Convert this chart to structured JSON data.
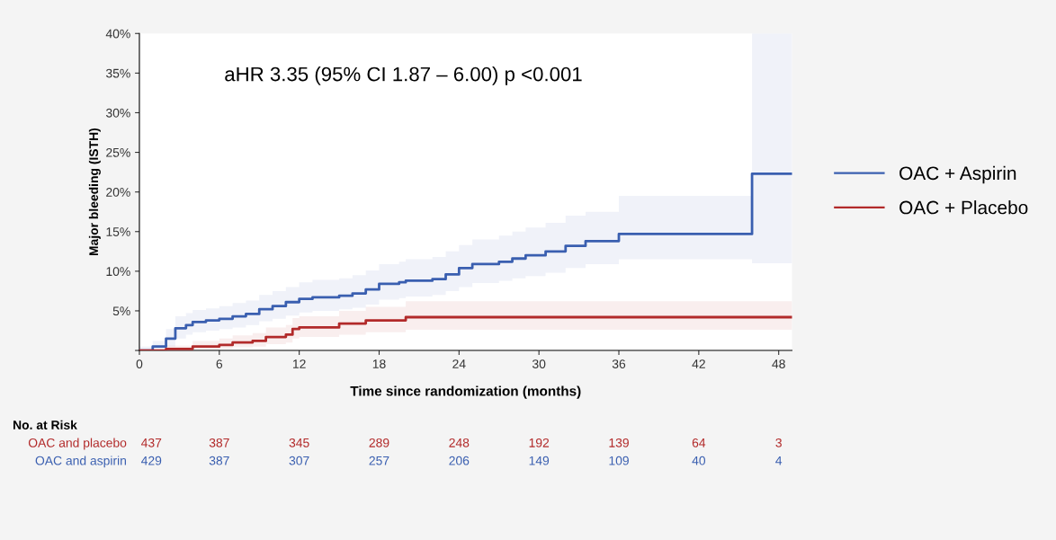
{
  "chart_data": {
    "type": "step",
    "xlabel": "Time since randomization (months)",
    "ylabel": "Major bleeding (ISTH)",
    "xlim": [
      0,
      49
    ],
    "ylim": [
      0,
      40
    ],
    "xticks": [
      0,
      6,
      12,
      18,
      24,
      30,
      36,
      42,
      48
    ],
    "yticks": [
      {
        "value": 0,
        "label": null
      },
      {
        "value": 5,
        "label": "5%"
      },
      {
        "value": 10,
        "label": "10%"
      },
      {
        "value": 15,
        "label": "15%"
      },
      {
        "value": 20,
        "label": "20%"
      },
      {
        "value": 25,
        "label": "25%"
      },
      {
        "value": 30,
        "label": "30%"
      },
      {
        "value": 35,
        "label": "35%"
      },
      {
        "value": 40,
        "label": "40%"
      }
    ],
    "grid": false,
    "legend": "right",
    "marker": "none",
    "line_style": "solid",
    "series": [
      {
        "name": "OAC + Aspirin",
        "color": "#3a5fb0",
        "x": [
          0,
          1,
          2,
          2.7,
          3.5,
          4,
          5,
          6,
          7,
          8,
          9,
          10,
          11,
          12,
          13,
          15,
          16,
          17,
          18,
          19.5,
          20,
          22,
          23,
          24,
          25,
          27,
          28,
          29,
          30.5,
          32,
          33.5,
          36,
          46,
          49
        ],
        "values": [
          0,
          0.5,
          1.5,
          2.8,
          3.2,
          3.6,
          3.8,
          4.0,
          4.3,
          4.6,
          5.2,
          5.6,
          6.1,
          6.5,
          6.7,
          6.9,
          7.2,
          7.7,
          8.4,
          8.6,
          8.8,
          9.0,
          9.6,
          10.4,
          10.9,
          11.2,
          11.6,
          12.0,
          12.5,
          13.2,
          13.8,
          14.7,
          22.3,
          22.3
        ],
        "lower": [
          0,
          0,
          0.5,
          1.5,
          2.0,
          2.3,
          2.5,
          2.7,
          2.9,
          3.2,
          3.7,
          4.0,
          4.4,
          4.8,
          5.0,
          5.2,
          5.4,
          5.8,
          6.4,
          6.6,
          6.8,
          7.0,
          7.5,
          8.0,
          8.5,
          8.8,
          9.1,
          9.4,
          9.8,
          10.4,
          10.9,
          11.5,
          11.0,
          11.0
        ],
        "upper": [
          0.5,
          1.2,
          2.7,
          4.3,
          4.7,
          5.1,
          5.3,
          5.6,
          6.0,
          6.3,
          7.0,
          7.5,
          8.0,
          8.6,
          8.9,
          9.1,
          9.5,
          10.1,
          10.9,
          11.2,
          11.5,
          11.8,
          12.5,
          13.3,
          14.0,
          14.5,
          15.0,
          15.5,
          16.1,
          17.0,
          17.5,
          19.5,
          40.0,
          40.0
        ]
      },
      {
        "name": "OAC + Placebo",
        "color": "#b22a2a",
        "x": [
          0,
          2,
          4,
          6,
          7,
          8.5,
          9.5,
          11,
          11.5,
          12,
          15,
          17,
          20,
          49
        ],
        "values": [
          0,
          0.2,
          0.5,
          0.7,
          1.0,
          1.2,
          1.7,
          2.0,
          2.7,
          2.9,
          3.4,
          3.8,
          4.2,
          4.2
        ],
        "lower": [
          0,
          0,
          0.1,
          0.2,
          0.4,
          0.5,
          0.8,
          1.0,
          1.5,
          1.7,
          2.0,
          2.3,
          2.6,
          2.6
        ],
        "upper": [
          0,
          0.6,
          1.2,
          1.5,
          1.9,
          2.2,
          2.9,
          3.2,
          4.1,
          4.3,
          5.0,
          5.5,
          6.2,
          6.8
        ]
      }
    ],
    "annotations": [
      "aHR 3.35 (95% CI 1.87 – 6.00) p <0.001",
      "No. at Risk",
      "OAC and placebo",
      "437",
      "387",
      "345",
      "289",
      "248",
      "192",
      "139",
      "64",
      "3",
      "OAC and aspirin",
      "429",
      "387",
      "307",
      "257",
      "206",
      "149",
      "109",
      "40",
      "4"
    ]
  }
}
